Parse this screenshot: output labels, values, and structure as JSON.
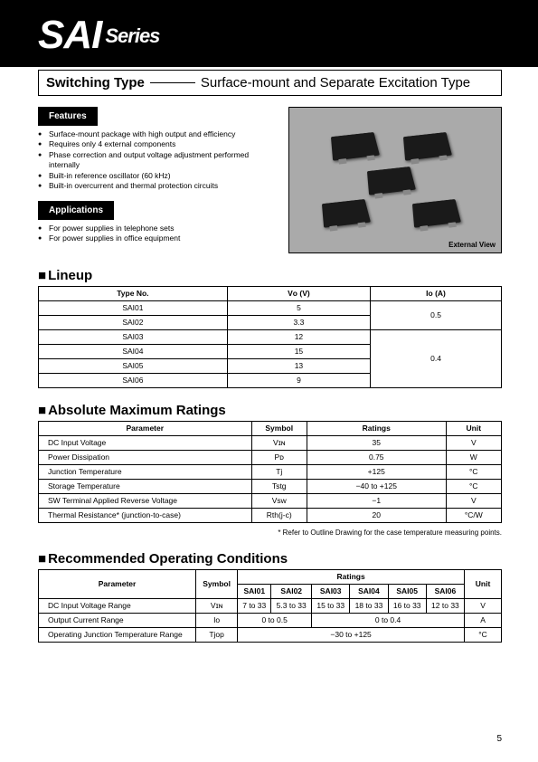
{
  "header": {
    "series": "SAI",
    "series_suffix": "Series",
    "switching_label": "Switching Type",
    "switching_desc": "Surface-mount and Separate Excitation Type"
  },
  "features": {
    "title": "Features",
    "items": [
      "Surface-mount package with high output and efficiency",
      "Requires only 4 external components",
      "Phase correction and output voltage adjustment performed internally",
      "Built-in reference oscillator (60 kHz)",
      "Built-in overcurrent and thermal protection circuits"
    ]
  },
  "applications": {
    "title": "Applications",
    "items": [
      "For power supplies in telephone sets",
      "For power supplies in office equipment"
    ]
  },
  "external_view_label": "External View",
  "lineup": {
    "title": "Lineup",
    "headers": [
      "Type No.",
      "Vᴏ (V)",
      "Iᴏ (A)"
    ],
    "rows": [
      {
        "type": "SAI01",
        "vo": "5",
        "io": "0.5",
        "io_span": 2
      },
      {
        "type": "SAI02",
        "vo": "3.3"
      },
      {
        "type": "SAI03",
        "vo": "12",
        "io": "0.4",
        "io_span": 4
      },
      {
        "type": "SAI04",
        "vo": "15"
      },
      {
        "type": "SAI05",
        "vo": "13"
      },
      {
        "type": "SAI06",
        "vo": "9"
      }
    ]
  },
  "amr": {
    "title": "Absolute Maximum Ratings",
    "headers": [
      "Parameter",
      "Symbol",
      "Ratings",
      "Unit"
    ],
    "rows": [
      {
        "param": "DC Input Voltage",
        "symbol": "Vɪɴ",
        "rating": "35",
        "unit": "V"
      },
      {
        "param": "Power Dissipation",
        "symbol": "Pᴅ",
        "rating": "0.75",
        "unit": "W"
      },
      {
        "param": "Junction Temperature",
        "symbol": "Tj",
        "rating": "+125",
        "unit": "°C"
      },
      {
        "param": "Storage Temperature",
        "symbol": "Tstg",
        "rating": "−40 to +125",
        "unit": "°C"
      },
      {
        "param": "SW Terminal Applied Reverse Voltage",
        "symbol": "Vsw",
        "rating": "−1",
        "unit": "V"
      },
      {
        "param": "Thermal Resistance* (junction-to-case)",
        "symbol": "Rth(j-c)",
        "rating": "20",
        "unit": "°C/W"
      }
    ],
    "footnote": "* Refer to Outline Drawing for the case temperature measuring points."
  },
  "roc": {
    "title": "Recommended Operating Conditions",
    "header_param": "Parameter",
    "header_symbol": "Symbol",
    "header_ratings": "Ratings",
    "header_unit": "Unit",
    "cols": [
      "SAI01",
      "SAI02",
      "SAI03",
      "SAI04",
      "SAI05",
      "SAI06"
    ],
    "rows": [
      {
        "param": "DC Input Voltage Range",
        "symbol": "Vɪɴ",
        "vals": [
          "7 to 33",
          "5.3 to 33",
          "15 to 33",
          "18 to 33",
          "16 to 33",
          "12 to 33"
        ],
        "unit": "V"
      },
      {
        "param": "Output Current Range",
        "symbol": "Iᴏ",
        "merged": [
          [
            "0 to 0.5",
            2
          ],
          [
            "0 to 0.4",
            4
          ]
        ],
        "unit": "A"
      },
      {
        "param": "Operating Junction Temperature Range",
        "symbol": "Tjop",
        "full": "−30 to +125",
        "unit": "°C"
      }
    ]
  },
  "page_number": "5",
  "colors": {
    "black": "#000000",
    "white": "#ffffff",
    "photo_bg": "#aaaaaa"
  }
}
